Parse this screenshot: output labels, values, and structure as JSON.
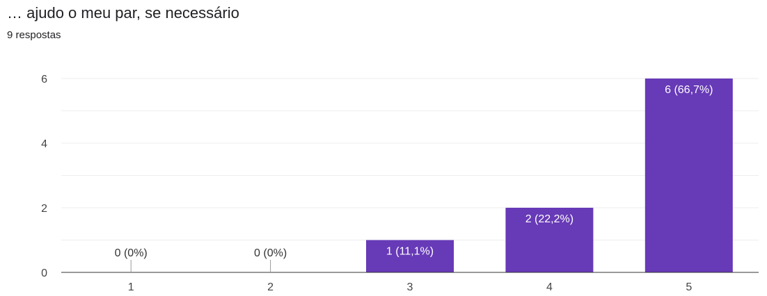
{
  "question": {
    "title": "… ajudo o meu par, se necessário",
    "responses": "9 respostas"
  },
  "chart_data": {
    "type": "bar",
    "categories": [
      "1",
      "2",
      "3",
      "4",
      "5"
    ],
    "values": [
      0,
      0,
      1,
      2,
      6
    ],
    "data_labels": [
      "0 (0%)",
      "0 (0%)",
      "1 (11,1%)",
      "2 (22,2%)",
      "6 (66,7%)"
    ],
    "ylim": [
      0,
      6
    ],
    "yticks": [
      0,
      2,
      4,
      6
    ],
    "grid": true,
    "bar_color": "#673ab7"
  }
}
